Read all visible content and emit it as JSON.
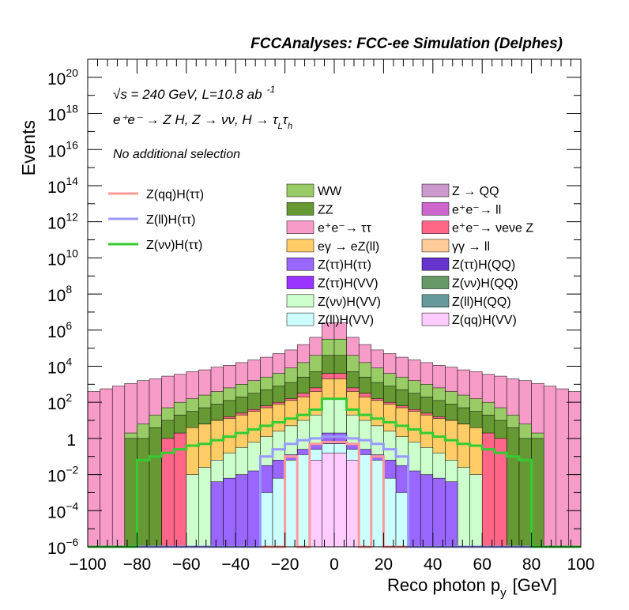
{
  "chart_data": {
    "type": "area",
    "title": "FCCAnalyses: FCC-ee Simulation (Delphes)",
    "xlabel_main": "Reco photon p",
    "xlabel_sub": "y",
    "xlabel_unit": "[GeV]",
    "ylabel": "Events",
    "xlim": [
      -100,
      100
    ],
    "ylim": [
      1e-06,
      1e+21
    ],
    "yscale": "log",
    "x_ticks": [
      "−100",
      "−80",
      "−60",
      "−40",
      "−20",
      "0",
      "20",
      "40",
      "60",
      "80",
      "100"
    ],
    "y_ticks": [
      {
        "base": "10",
        "exp": "−6"
      },
      {
        "base": "10",
        "exp": "−4"
      },
      {
        "base": "10",
        "exp": "−2"
      },
      {
        "base": "1",
        "exp": ""
      },
      {
        "base": "10",
        "exp": "2"
      },
      {
        "base": "10",
        "exp": "4"
      },
      {
        "base": "10",
        "exp": "6"
      },
      {
        "base": "10",
        "exp": "8"
      },
      {
        "base": "10",
        "exp": "10"
      },
      {
        "base": "10",
        "exp": "12"
      },
      {
        "base": "10",
        "exp": "14"
      },
      {
        "base": "10",
        "exp": "16"
      },
      {
        "base": "10",
        "exp": "18"
      },
      {
        "base": "10",
        "exp": "20"
      }
    ],
    "annotations": {
      "energy": "√s = 240 GeV, L=10.8 ab",
      "lumi_exp": "-1",
      "process": "e⁺e⁻ → Z H, Z → νν, H → τ",
      "tau_sub_1": "L",
      "tau_char": "τ",
      "tau_sub_2": "h",
      "selection": "No additional selection"
    },
    "bins": {
      "start": -100,
      "width": 5,
      "count": 40
    },
    "stack_layers": [
      {
        "name": "e+e- → ττ",
        "color": "#f79bc8",
        "log10": [
          2.6,
          2.75,
          2.9,
          3.05,
          3.2,
          3.3,
          3.45,
          3.55,
          3.7,
          3.8,
          3.95,
          4.05,
          4.2,
          4.35,
          4.5,
          4.7,
          4.9,
          5.2,
          5.6,
          6.4,
          6.4,
          5.6,
          5.2,
          4.9,
          4.7,
          4.5,
          4.35,
          4.2,
          4.05,
          3.95,
          3.8,
          3.7,
          3.55,
          3.45,
          3.3,
          3.2,
          3.05,
          2.9,
          2.75,
          2.6
        ]
      },
      {
        "name": "WW",
        "color": "#99cc66",
        "log10": [
          -6,
          -6,
          -6,
          0.3,
          0.8,
          1.3,
          1.7,
          2.0,
          2.2,
          2.4,
          2.6,
          2.8,
          3.0,
          3.2,
          3.4,
          3.6,
          3.9,
          4.2,
          4.6,
          5.5,
          5.5,
          4.6,
          4.2,
          3.9,
          3.6,
          3.4,
          3.2,
          3.0,
          2.8,
          2.6,
          2.4,
          2.2,
          2.0,
          1.7,
          1.3,
          0.8,
          0.3,
          -6,
          -6,
          -6
        ]
      },
      {
        "name": "ZZ",
        "color": "#669933",
        "log10": [
          -6,
          -6,
          -6,
          0,
          0,
          0.6,
          1.0,
          1.3,
          1.5,
          1.7,
          1.9,
          2.1,
          2.3,
          2.5,
          2.7,
          2.9,
          3.1,
          3.4,
          3.7,
          4.6,
          4.6,
          3.7,
          3.4,
          3.1,
          2.9,
          2.7,
          2.5,
          2.3,
          2.1,
          1.9,
          1.7,
          1.5,
          1.3,
          1.0,
          0.6,
          0,
          0,
          -6,
          -6,
          -6
        ]
      },
      {
        "name": "e+e- → νeνe Z",
        "color": "#ff6688",
        "log10": [
          -6,
          -6,
          -6,
          -6,
          -6,
          -6,
          0,
          0.3,
          0.5,
          0.8,
          1.0,
          1.2,
          1.4,
          1.6,
          1.8,
          2.0,
          2.2,
          2.5,
          2.8,
          3.6,
          3.6,
          2.8,
          2.5,
          2.2,
          2.0,
          1.8,
          1.6,
          1.4,
          1.2,
          1.0,
          0.8,
          0.5,
          0.3,
          0,
          -6,
          -6,
          -6,
          -6,
          -6,
          -6
        ]
      },
      {
        "name": "eγ → eZ(ll)",
        "color": "#ffcc66",
        "log10": [
          -6,
          -6,
          -6,
          -6,
          -6,
          -6,
          -6,
          -6,
          0.6,
          0.8,
          1.0,
          1.1,
          1.3,
          1.5,
          1.7,
          1.9,
          2.1,
          2.3,
          2.6,
          3.3,
          3.3,
          2.6,
          2.3,
          2.1,
          1.9,
          1.7,
          1.5,
          1.3,
          1.1,
          1.0,
          0.8,
          0.6,
          -6,
          -6,
          -6,
          -6,
          -6,
          -6,
          -6,
          -6
        ]
      },
      {
        "name": "Z(νν)H(VV)",
        "color": "#ccffcc",
        "log10": [
          -6,
          -6,
          -6,
          -6,
          -6,
          -6,
          -6,
          -6,
          -2.0,
          -1.6,
          -1.2,
          -0.8,
          -0.5,
          -0.2,
          0.1,
          0.4,
          0.7,
          1.0,
          1.3,
          2.2,
          2.2,
          1.3,
          1.0,
          0.7,
          0.4,
          0.1,
          -0.2,
          -0.5,
          -0.8,
          -1.2,
          -1.6,
          -2.0,
          -6,
          -6,
          -6,
          -6,
          -6,
          -6,
          -6,
          -6
        ]
      },
      {
        "name": "Z(ττ)H(ττ)",
        "color": "#9966ff",
        "log10": [
          -6,
          -6,
          -6,
          -6,
          -6,
          -6,
          -6,
          -6,
          -6,
          -6,
          -2.4,
          -2.2,
          -2.0,
          -1.8,
          -1.5,
          -1.2,
          -0.9,
          -0.6,
          -0.3,
          0.3,
          0.3,
          -0.3,
          -0.6,
          -0.9,
          -1.2,
          -1.5,
          -1.8,
          -2.0,
          -2.2,
          -2.4,
          -6,
          -6,
          -6,
          -6,
          -6,
          -6,
          -6,
          -6,
          -6,
          -6
        ]
      },
      {
        "name": "Z(ll)H(VV)",
        "color": "#ccffff",
        "log10": [
          -6,
          -6,
          -6,
          -6,
          -6,
          -6,
          -6,
          -6,
          -6,
          -6,
          -6,
          -6,
          -6,
          -6,
          -3.0,
          -2.2,
          -1.2,
          -0.9,
          -0.6,
          -0.3,
          -0.3,
          -0.6,
          -0.9,
          -1.2,
          -2.2,
          -3.0,
          -6,
          -6,
          -6,
          -6,
          -6,
          -6,
          -6,
          -6,
          -6,
          -6,
          -6,
          -6,
          -6,
          -6
        ]
      },
      {
        "name": "Z(qq)H(VV)",
        "color": "#ffccff",
        "log10": [
          -6,
          -6,
          -6,
          -6,
          -6,
          -6,
          -6,
          -6,
          -6,
          -6,
          -6,
          -6,
          -6,
          -6,
          -6,
          -6,
          -6,
          -6,
          -1.2,
          -0.8,
          -0.8,
          -1.2,
          -6,
          -6,
          -6,
          -6,
          -6,
          -6,
          -6,
          -6,
          -6,
          -6,
          -6,
          -6,
          -6,
          -6,
          -6,
          -6,
          -6,
          -6
        ]
      }
    ],
    "signal_lines": [
      {
        "name": "Z(qq)H(ττ)",
        "color": "#ff9999",
        "log10": [
          -6,
          -6,
          -6,
          -6,
          -6,
          -6,
          -6,
          -6,
          -6,
          -6,
          -6,
          -6,
          -6,
          -6,
          -6,
          -6,
          -1,
          -6,
          -0.3,
          -0.2,
          -0.2,
          -0.3,
          -6,
          -1,
          -6,
          -6,
          -6,
          -6,
          -6,
          -6,
          -6,
          -6,
          -6,
          -6,
          -6,
          -6,
          -6,
          -6,
          -6,
          -6
        ]
      },
      {
        "name": "Z(ll)H(ττ)",
        "color": "#9999ff",
        "log10": [
          -6,
          -6,
          -6,
          -6,
          -6,
          -6,
          -6,
          -6,
          -6,
          -6,
          -6,
          -6,
          -6,
          -6,
          -1.0,
          -0.6,
          -0.3,
          -0.1,
          0.0,
          0.1,
          0.1,
          0.0,
          -0.1,
          -0.3,
          -0.6,
          -1.0,
          -6,
          -6,
          -6,
          -6,
          -6,
          -6,
          -6,
          -6,
          -6,
          -6,
          -6,
          -6,
          -6,
          -6
        ]
      },
      {
        "name": "Z(νν)H(ττ)",
        "color": "#33cc33",
        "log10": [
          -6,
          -6,
          -6,
          -6,
          -1.2,
          -1.0,
          -0.8,
          -0.6,
          -0.4,
          -0.3,
          -0.1,
          0.1,
          0.3,
          0.5,
          0.7,
          0.9,
          1.1,
          1.3,
          1.6,
          2.2,
          2.2,
          1.6,
          1.3,
          1.1,
          0.9,
          0.7,
          0.5,
          0.3,
          0.1,
          -0.1,
          -0.3,
          -0.4,
          -0.6,
          -0.8,
          -1.0,
          -1.2,
          -6,
          -6,
          -6,
          -6
        ]
      }
    ],
    "legend_lines": [
      {
        "name": "Z(qq)H(ττ)",
        "color": "#ff9999"
      },
      {
        "name": "Z(ll)H(ττ)",
        "color": "#9999ff"
      },
      {
        "name": "Z(νν)H(ττ)",
        "color": "#33cc33"
      }
    ],
    "legend_col1": [
      {
        "name": "WW",
        "color": "#99cc66"
      },
      {
        "name": "ZZ",
        "color": "#669933"
      },
      {
        "name": "e⁺e⁻→ ττ",
        "color": "#f79bc8"
      },
      {
        "name": "eγ → eZ(ll)",
        "color": "#ffcc66"
      },
      {
        "name": "Z(ττ)H(ττ)",
        "color": "#9966ff"
      },
      {
        "name": "Z(ττ)H(VV)",
        "color": "#9933ff"
      },
      {
        "name": "Z(νν)H(VV)",
        "color": "#ccffcc"
      },
      {
        "name": "Z(ll)H(VV)",
        "color": "#ccffff"
      }
    ],
    "legend_col2": [
      {
        "name": "Z → QQ",
        "color": "#cc99cc"
      },
      {
        "name": "e⁺e⁻→ ll",
        "color": "#cc66cc"
      },
      {
        "name": "e⁺e⁻→ νeνe Z",
        "color": "#ff6688"
      },
      {
        "name": "γγ → ll",
        "color": "#ffcc99"
      },
      {
        "name": "Z(ττ)H(QQ)",
        "color": "#6633cc"
      },
      {
        "name": "Z(νν)H(QQ)",
        "color": "#669966"
      },
      {
        "name": "Z(ll)H(QQ)",
        "color": "#669999"
      },
      {
        "name": "Z(qq)H(VV)",
        "color": "#ffccff"
      }
    ]
  }
}
